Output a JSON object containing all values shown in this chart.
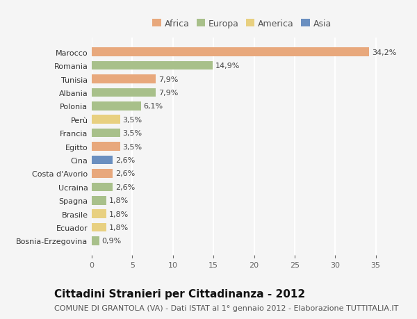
{
  "countries": [
    "Bosnia-Erzegovina",
    "Ecuador",
    "Brasile",
    "Spagna",
    "Ucraina",
    "Costa d'Avorio",
    "Cina",
    "Egitto",
    "Francia",
    "Perù",
    "Polonia",
    "Albania",
    "Tunisia",
    "Romania",
    "Marocco"
  ],
  "values": [
    0.9,
    1.8,
    1.8,
    1.8,
    2.6,
    2.6,
    2.6,
    3.5,
    3.5,
    3.5,
    6.1,
    7.9,
    7.9,
    14.9,
    34.2
  ],
  "bar_colors": [
    "#A8C08A",
    "#E8D080",
    "#E8D080",
    "#A8C08A",
    "#A8C08A",
    "#E8A87C",
    "#6A8FC0",
    "#E8A87C",
    "#A8C08A",
    "#E8D080",
    "#A8C08A",
    "#A8C08A",
    "#E8A87C",
    "#A8C08A",
    "#E8A87C"
  ],
  "xlim": [
    0,
    37
  ],
  "xticks": [
    0,
    5,
    10,
    15,
    20,
    25,
    30,
    35
  ],
  "title": "Cittadini Stranieri per Cittadinanza - 2012",
  "subtitle": "COMUNE DI GRANTOLA (VA) - Dati ISTAT al 1° gennaio 2012 - Elaborazione TUTTITALIA.IT",
  "legend_labels": [
    "Africa",
    "Europa",
    "America",
    "Asia"
  ],
  "legend_colors": [
    "#E8A87C",
    "#A8C08A",
    "#E8D080",
    "#6A8FC0"
  ],
  "background_color": "#f5f5f5",
  "grid_color": "#ffffff",
  "bar_height": 0.65,
  "label_fontsize": 8,
  "title_fontsize": 11,
  "subtitle_fontsize": 8
}
